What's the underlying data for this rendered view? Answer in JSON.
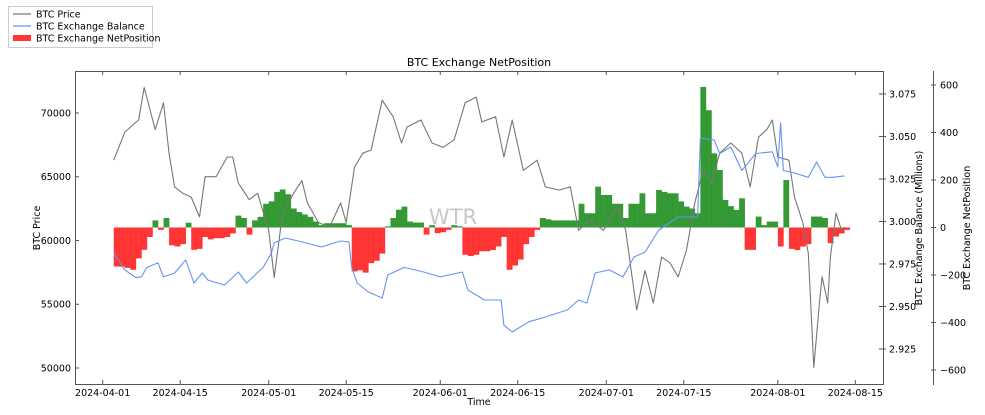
{
  "chart_data": {
    "type": "bar+line",
    "title": "BTC Exchange NetPosition",
    "xlabel": "Time",
    "watermark": "WTR",
    "legend": {
      "placement": "top-left outside",
      "entries": [
        "BTC Price",
        "BTC Exchange Balance",
        "BTC Exchange NetPosition"
      ]
    },
    "colors": {
      "price": "#777777",
      "balance": "#6495ED",
      "positive": "#1f8f1f",
      "negative": "#ff2020"
    },
    "x_range": [
      "2024-03-27",
      "2024-08-20"
    ],
    "x_ticks": [
      "2024-04-01",
      "2024-04-15",
      "2024-05-01",
      "2024-05-15",
      "2024-06-01",
      "2024-06-15",
      "2024-07-01",
      "2024-07-15",
      "2024-08-01",
      "2024-08-15"
    ],
    "axes": {
      "price": {
        "label": "BTC Price",
        "ylim": [
          48745,
          73294
        ],
        "ticks": [
          50000,
          55000,
          60000,
          65000,
          70000
        ]
      },
      "balance": {
        "label": "BTC Exchange Balance (Millions)",
        "ylim": [
          2.9044,
          3.0885
        ],
        "ticks": [
          "2.925",
          "2.950",
          "2.975",
          "3.000",
          "3.025",
          "3.050",
          "3.075"
        ]
      },
      "netposition": {
        "label": "BTC Exchange NetPosition",
        "ylim": [
          -659,
          659
        ],
        "ticks": [
          -600,
          -400,
          -200,
          0,
          200,
          400,
          600
        ]
      }
    },
    "series": [
      {
        "name": "BTC Price",
        "type": "line",
        "axis": "price",
        "points": [
          [
            "2024-04-03",
            66300
          ],
          [
            "2024-04-05",
            68500
          ],
          [
            "2024-04-07T12",
            69450
          ],
          [
            "2024-04-08T12",
            72000
          ],
          [
            "2024-04-10T12",
            68700
          ],
          [
            "2024-04-12",
            70800
          ],
          [
            "2024-04-13",
            66800
          ],
          [
            "2024-04-14",
            64200
          ],
          [
            "2024-04-15T12",
            63700
          ],
          [
            "2024-04-17",
            63400
          ],
          [
            "2024-04-18T12",
            61850
          ],
          [
            "2024-04-19T12",
            65000
          ],
          [
            "2024-04-21T12",
            65000
          ],
          [
            "2024-04-23T12",
            66550
          ],
          [
            "2024-04-24T12",
            66550
          ],
          [
            "2024-04-25T12",
            64500
          ],
          [
            "2024-04-27T12",
            63200
          ],
          [
            "2024-04-29",
            63700
          ],
          [
            "2024-05-01",
            60800
          ],
          [
            "2024-05-02",
            57100
          ],
          [
            "2024-05-03T12",
            62100
          ],
          [
            "2024-05-05T12",
            63700
          ],
          [
            "2024-05-07",
            64700
          ],
          [
            "2024-05-08",
            62950
          ],
          [
            "2024-05-10",
            61400
          ],
          [
            "2024-05-12",
            61050
          ],
          [
            "2024-05-14",
            62950
          ],
          [
            "2024-05-15",
            61400
          ],
          [
            "2024-05-16T12",
            65750
          ],
          [
            "2024-05-18",
            66850
          ],
          [
            "2024-05-19T12",
            67100
          ],
          [
            "2024-05-21T12",
            71000
          ],
          [
            "2024-05-23T12",
            69700
          ],
          [
            "2024-05-25",
            67650
          ],
          [
            "2024-05-26",
            68900
          ],
          [
            "2024-05-28T12",
            69450
          ],
          [
            "2024-05-30T12",
            67650
          ],
          [
            "2024-06-01T12",
            67300
          ],
          [
            "2024-06-03T12",
            67900
          ],
          [
            "2024-06-05T12",
            70800
          ],
          [
            "2024-06-07T12",
            71250
          ],
          [
            "2024-06-08T12",
            69300
          ],
          [
            "2024-06-11",
            69700
          ],
          [
            "2024-06-12T12",
            66550
          ],
          [
            "2024-06-14",
            69450
          ],
          [
            "2024-06-16",
            65500
          ],
          [
            "2024-06-18T12",
            66300
          ],
          [
            "2024-06-20",
            64200
          ],
          [
            "2024-06-22T12",
            63950
          ],
          [
            "2024-06-24T12",
            64200
          ],
          [
            "2024-06-26",
            60800
          ],
          [
            "2024-06-28",
            61600
          ],
          [
            "2024-06-30T12",
            60800
          ],
          [
            "2024-07-03",
            62650
          ],
          [
            "2024-07-04T12",
            60800
          ],
          [
            "2024-07-05T12",
            57650
          ],
          [
            "2024-07-06T12",
            54550
          ],
          [
            "2024-07-08",
            57650
          ],
          [
            "2024-07-09T12",
            55100
          ],
          [
            "2024-07-11",
            58700
          ],
          [
            "2024-07-12T12",
            58250
          ],
          [
            "2024-07-14",
            57150
          ],
          [
            "2024-07-15T12",
            59250
          ],
          [
            "2024-07-17",
            62950
          ],
          [
            "2024-07-18T12",
            65500
          ],
          [
            "2024-07-20",
            64500
          ],
          [
            "2024-07-21T12",
            66850
          ],
          [
            "2024-07-23T12",
            67650
          ],
          [
            "2024-07-25T12",
            66850
          ],
          [
            "2024-07-27",
            64200
          ],
          [
            "2024-07-28T12",
            68100
          ],
          [
            "2024-07-30",
            68700
          ],
          [
            "2024-07-31",
            69450
          ],
          [
            "2024-08-01",
            66550
          ],
          [
            "2024-08-03",
            66300
          ],
          [
            "2024-08-04",
            63400
          ],
          [
            "2024-08-05T12",
            61400
          ],
          [
            "2024-08-06T12",
            59000
          ],
          [
            "2024-08-07T12",
            50050
          ],
          [
            "2024-08-08T12",
            55100
          ],
          [
            "2024-08-09",
            57150
          ],
          [
            "2024-08-10",
            55100
          ],
          [
            "2024-08-10T12",
            58700
          ],
          [
            "2024-08-11T12",
            62150
          ],
          [
            "2024-08-12T12",
            60800
          ],
          [
            "2024-08-13",
            61050
          ]
        ]
      },
      {
        "name": "BTC Exchange Balance",
        "type": "line",
        "axis": "balance",
        "points": [
          [
            "2024-04-03",
            2.9815
          ],
          [
            "2024-04-05",
            2.9715
          ],
          [
            "2024-04-07",
            2.967
          ],
          [
            "2024-04-08",
            2.9674
          ],
          [
            "2024-04-09",
            2.973
          ],
          [
            "2024-04-11",
            2.9756
          ],
          [
            "2024-04-12",
            2.9674
          ],
          [
            "2024-04-14",
            2.9697
          ],
          [
            "2024-04-16",
            2.9774
          ],
          [
            "2024-04-17T12",
            2.9638
          ],
          [
            "2024-04-19",
            2.9697
          ],
          [
            "2024-04-20",
            2.9656
          ],
          [
            "2024-04-23",
            2.9626
          ],
          [
            "2024-04-25T12",
            2.9703
          ],
          [
            "2024-04-27",
            2.9638
          ],
          [
            "2024-04-30",
            2.973
          ],
          [
            "2024-05-01T12",
            2.9815
          ],
          [
            "2024-05-02",
            2.9874
          ],
          [
            "2024-05-04",
            2.9903
          ],
          [
            "2024-05-07",
            2.988
          ],
          [
            "2024-05-10T12",
            2.985
          ],
          [
            "2024-05-14",
            2.9885
          ],
          [
            "2024-05-15T12",
            2.988
          ],
          [
            "2024-05-16",
            2.973
          ],
          [
            "2024-05-17",
            2.9638
          ],
          [
            "2024-05-19",
            2.9585
          ],
          [
            "2024-05-21T12",
            2.955
          ],
          [
            "2024-05-22T12",
            2.9685
          ],
          [
            "2024-05-25T12",
            2.973
          ],
          [
            "2024-05-29",
            2.9703
          ],
          [
            "2024-06-01",
            2.9674
          ],
          [
            "2024-06-05",
            2.9703
          ],
          [
            "2024-06-06",
            2.9597
          ],
          [
            "2024-06-09",
            2.9538
          ],
          [
            "2024-06-12",
            2.9538
          ],
          [
            "2024-06-12T12",
            2.939
          ],
          [
            "2024-06-14",
            2.935
          ],
          [
            "2024-06-17",
            2.941
          ],
          [
            "2024-06-20",
            2.9438
          ],
          [
            "2024-06-24",
            2.948
          ],
          [
            "2024-06-26",
            2.9538
          ],
          [
            "2024-06-27T12",
            2.952
          ],
          [
            "2024-06-29",
            2.9697
          ],
          [
            "2024-07-01T12",
            2.9715
          ],
          [
            "2024-07-04",
            2.9674
          ],
          [
            "2024-07-06",
            2.9791
          ],
          [
            "2024-07-08",
            2.982
          ],
          [
            "2024-07-10T12",
            2.995
          ],
          [
            "2024-07-14",
            3.0026
          ],
          [
            "2024-07-17",
            3.0026
          ],
          [
            "2024-07-17T12",
            3.0026
          ],
          [
            "2024-07-18",
            3.049
          ],
          [
            "2024-07-20T12",
            3.048
          ],
          [
            "2024-07-21T12",
            3.04
          ],
          [
            "2024-07-23T12",
            3.0438
          ],
          [
            "2024-07-25T12",
            3.03
          ],
          [
            "2024-07-28",
            3.04
          ],
          [
            "2024-07-31",
            3.041
          ],
          [
            "2024-08-01",
            3.032
          ],
          [
            "2024-08-01T12",
            3.058
          ],
          [
            "2024-08-02",
            3.03
          ],
          [
            "2024-08-04",
            3.0285
          ],
          [
            "2024-08-06T12",
            3.026
          ],
          [
            "2024-08-08",
            3.035
          ],
          [
            "2024-08-09T12",
            3.026
          ],
          [
            "2024-08-11",
            3.026
          ],
          [
            "2024-08-13",
            3.0268
          ]
        ]
      },
      {
        "name": "BTC Exchange NetPosition",
        "type": "bar",
        "axis": "netposition",
        "start": "2024-04-03",
        "step_days": 1,
        "values": [
          -164,
          -165,
          -170,
          -178,
          -130,
          -94,
          -40,
          30,
          -10,
          40,
          -75,
          -80,
          -70,
          20,
          -94,
          -90,
          -40,
          -50,
          -45,
          -45,
          -40,
          -25,
          50,
          40,
          -30,
          30,
          45,
          100,
          110,
          150,
          160,
          140,
          80,
          65,
          55,
          45,
          25,
          10,
          18,
          18,
          18,
          18,
          10,
          -185,
          -180,
          -190,
          -150,
          -140,
          -110,
          5,
          40,
          75,
          88,
          25,
          21,
          21,
          -30,
          10,
          -24,
          -20,
          -10,
          10,
          5,
          -115,
          -120,
          -115,
          -100,
          -100,
          -95,
          -80,
          -40,
          -178,
          -160,
          -135,
          -70,
          -40,
          -10,
          40,
          35,
          30,
          30,
          30,
          30,
          30,
          100,
          60,
          60,
          172,
          137,
          137,
          100,
          100,
          40,
          100,
          100,
          144,
          60,
          60,
          158,
          150,
          144,
          144,
          110,
          88,
          80,
          60,
          592,
          494,
          312,
          242,
          116,
          90,
          74,
          123,
          -94,
          -94,
          46,
          10,
          25,
          25,
          -80,
          200,
          -90,
          -95,
          -80,
          -70,
          46,
          46,
          40,
          -66,
          -38,
          -25,
          -10
        ]
      }
    ]
  }
}
